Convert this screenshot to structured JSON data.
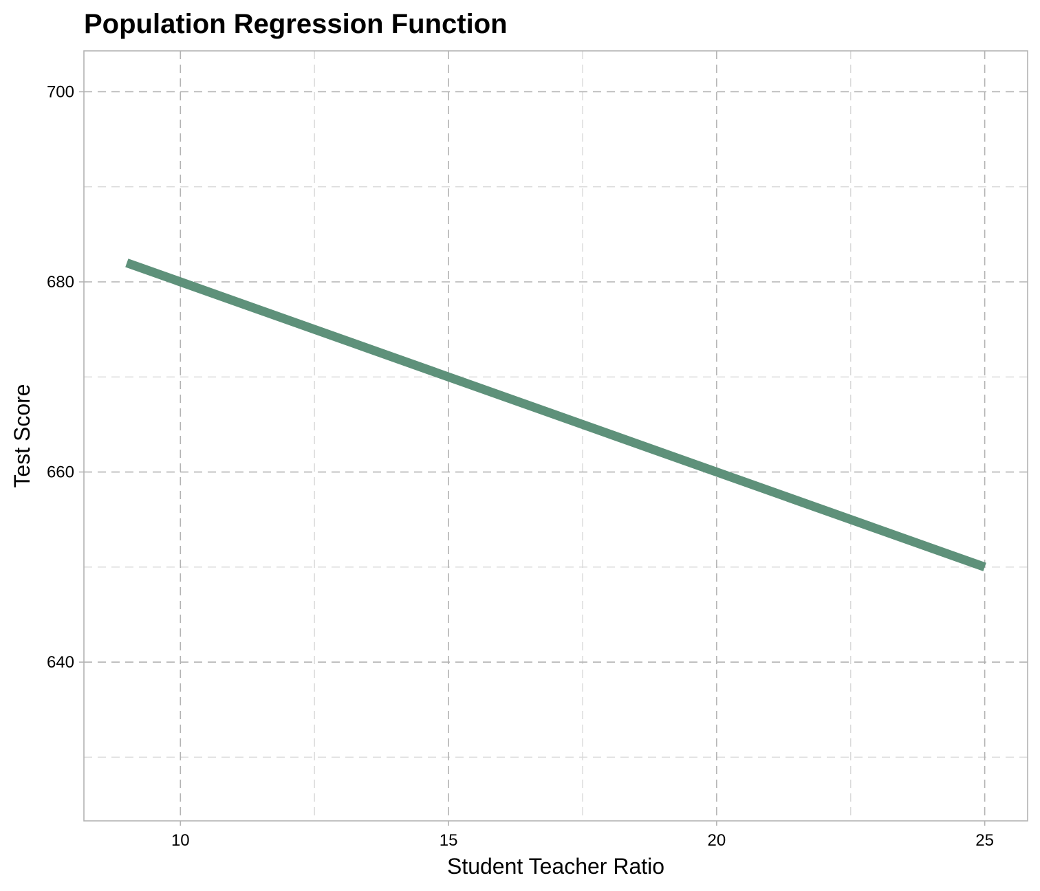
{
  "chart_data": {
    "type": "line",
    "title": "Population Regression Function",
    "xlabel": "Student Teacher Ratio",
    "ylabel": "Test Score",
    "xlim": [
      8.2,
      25.8
    ],
    "ylim": [
      623.3,
      704.3
    ],
    "x_ticks": [
      10,
      15,
      20,
      25
    ],
    "y_ticks": [
      640,
      660,
      680,
      700
    ],
    "x_minor_ticks": [
      12.5,
      17.5,
      22.5
    ],
    "y_minor_ticks": [
      630,
      650,
      670,
      690
    ],
    "grid": true,
    "legend": "none",
    "series": [
      {
        "x": [
          9,
          25
        ],
        "y": [
          682,
          650
        ],
        "color": "#5e917a"
      }
    ]
  }
}
